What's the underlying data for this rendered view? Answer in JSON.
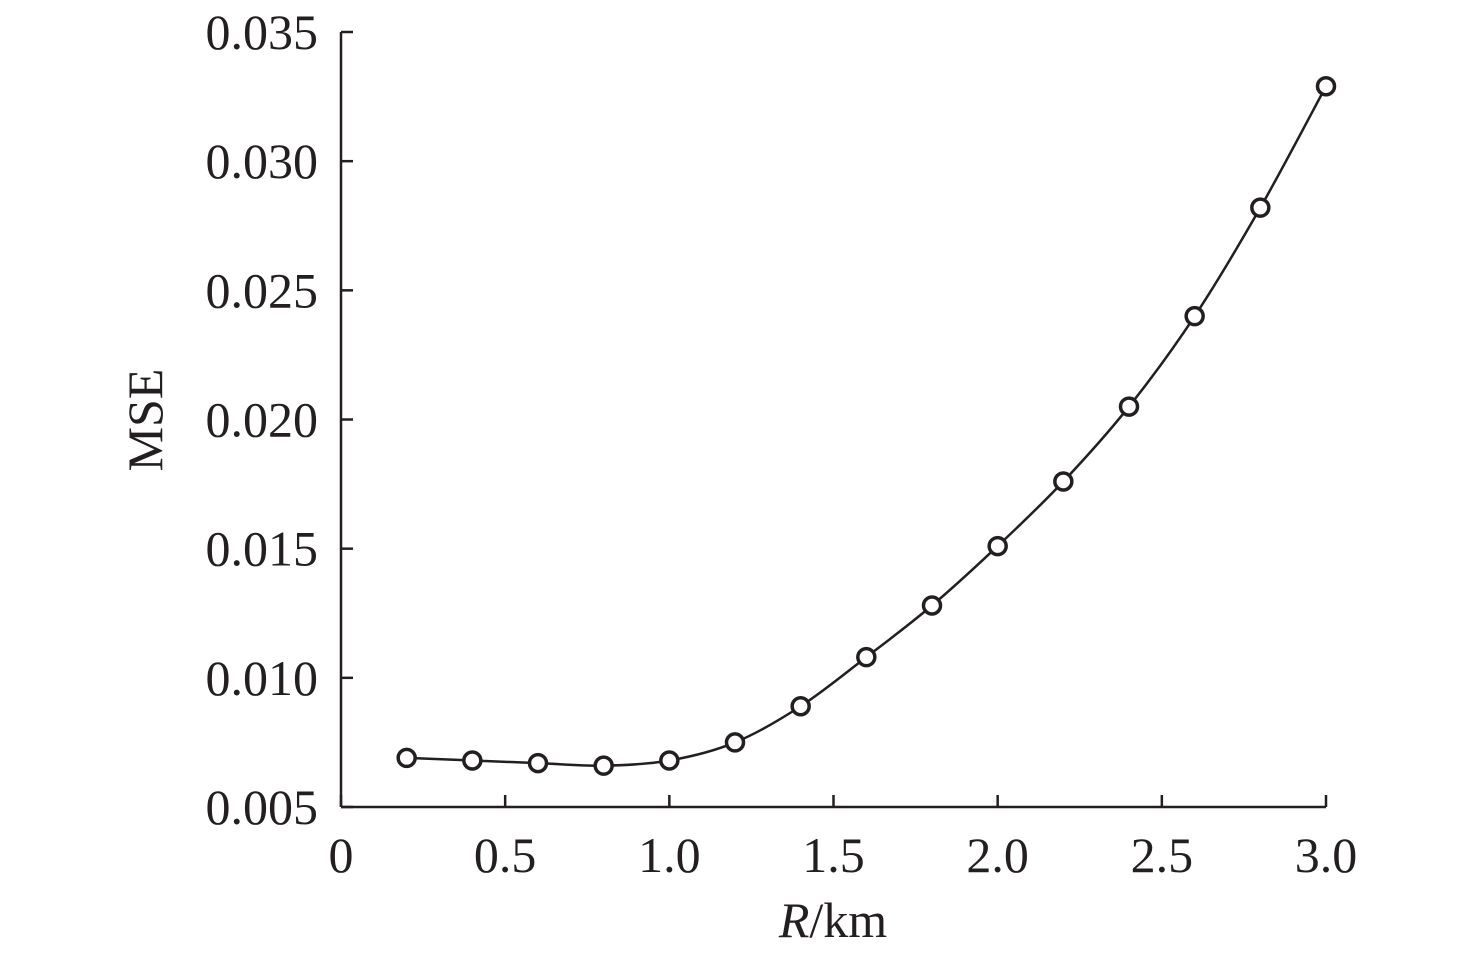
{
  "chart_data": {
    "type": "line",
    "xlabel_italic": "R",
    "xlabel_rest": "/km",
    "ylabel": "MSE",
    "xlim": [
      0,
      3.0
    ],
    "ylim": [
      0.005,
      0.035
    ],
    "x_ticks": [
      0,
      0.5,
      1.0,
      1.5,
      2.0,
      2.5,
      3.0
    ],
    "x_tick_labels": [
      "0",
      "0.5",
      "1.0",
      "1.5",
      "2.0",
      "2.5",
      "3.0"
    ],
    "y_ticks": [
      0.005,
      0.01,
      0.015,
      0.02,
      0.025,
      0.03,
      0.035
    ],
    "y_tick_labels": [
      "0.005",
      "0.010",
      "0.015",
      "0.020",
      "0.025",
      "0.030",
      "0.035"
    ],
    "grid": false,
    "marker": "open-circle",
    "line_color": "#231f20",
    "series": [
      {
        "x": [
          0.2,
          0.4,
          0.6,
          0.8,
          1.0,
          1.2,
          1.4,
          1.6,
          1.8,
          2.0,
          2.2,
          2.4,
          2.6,
          2.8,
          3.0
        ],
        "y": [
          0.0069,
          0.0068,
          0.0067,
          0.0066,
          0.0068,
          0.0075,
          0.0089,
          0.0108,
          0.0128,
          0.0151,
          0.0176,
          0.0205,
          0.024,
          0.0282,
          0.0329
        ]
      }
    ]
  }
}
